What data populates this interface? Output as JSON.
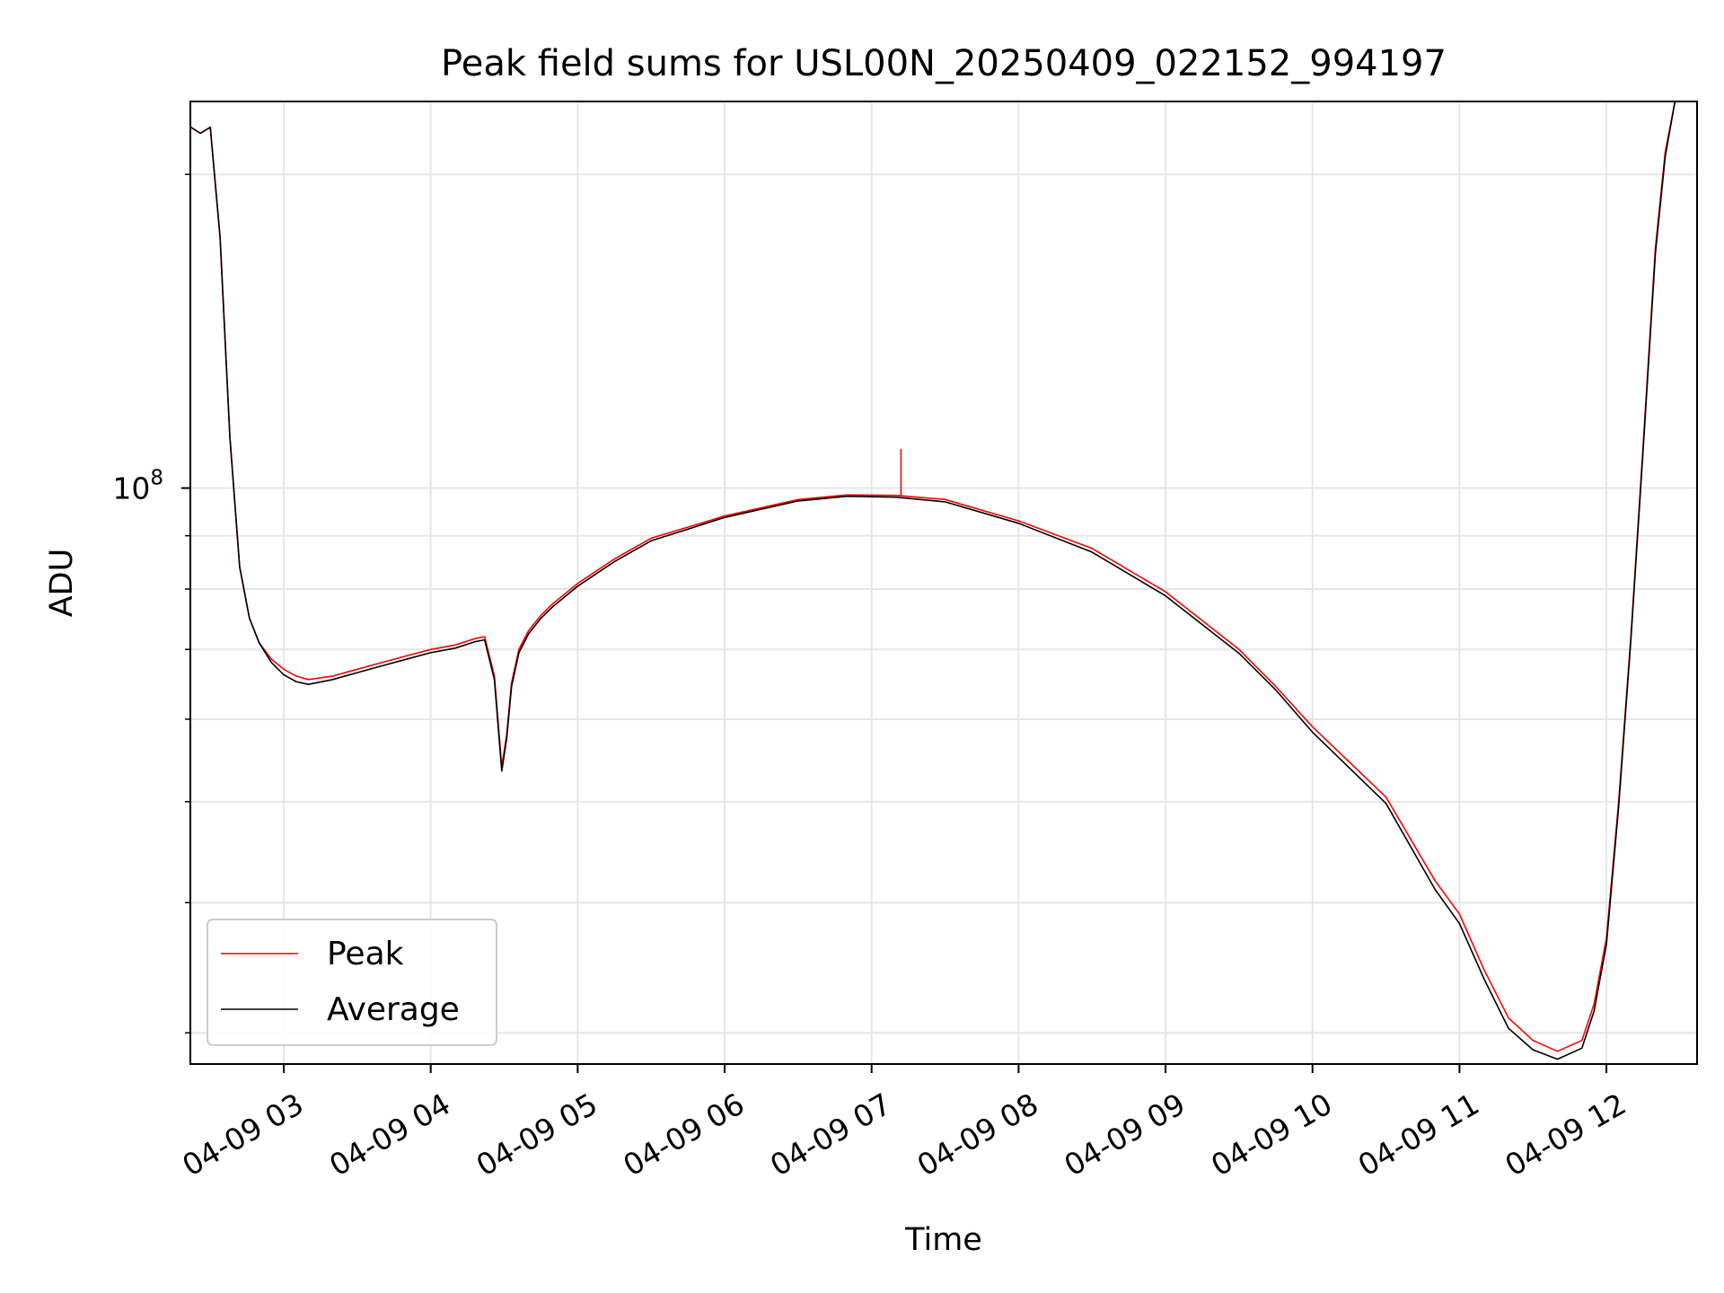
{
  "chart_data": {
    "type": "line",
    "title": "Peak field sums for USL00N_20250409_022152_994197",
    "xlabel": "Time",
    "ylabel": "ADU",
    "y_scale": "log",
    "grid": true,
    "grid_minor": true,
    "legend_placement": "lower-left",
    "xlim": [
      "2025-04-09 02:21:52",
      "2025-04-09 12:37:00"
    ],
    "ylim": [
      28000000,
      235000000
    ],
    "x_ticks": [
      {
        "value": "2025-04-09 03:00",
        "label": "04-09 03"
      },
      {
        "value": "2025-04-09 04:00",
        "label": "04-09 04"
      },
      {
        "value": "2025-04-09 05:00",
        "label": "04-09 05"
      },
      {
        "value": "2025-04-09 06:00",
        "label": "04-09 06"
      },
      {
        "value": "2025-04-09 07:00",
        "label": "04-09 07"
      },
      {
        "value": "2025-04-09 08:00",
        "label": "04-09 08"
      },
      {
        "value": "2025-04-09 09:00",
        "label": "04-09 09"
      },
      {
        "value": "2025-04-09 10:00",
        "label": "04-09 10"
      },
      {
        "value": "2025-04-09 11:00",
        "label": "04-09 11"
      },
      {
        "value": "2025-04-09 12:00",
        "label": "04-09 12"
      }
    ],
    "y_major_ticks": [
      {
        "value": 100000000,
        "label_base": "10",
        "label_exp": "8"
      }
    ],
    "y_minor_ticks": [
      30000000,
      40000000,
      50000000,
      60000000,
      70000000,
      80000000,
      90000000,
      200000000
    ],
    "colors": {
      "Peak": "#ff0000",
      "Average": "#000000",
      "grid": "#e6e6e6"
    },
    "series": [
      {
        "name": "Peak",
        "color": "#ff0000",
        "spikes": [
          {
            "x": "2025-04-09 07:12",
            "y": 109000000
          }
        ],
        "points": [
          [
            "2025-04-09 02:22",
            222000000
          ],
          [
            "2025-04-09 02:26",
            219000000
          ],
          [
            "2025-04-09 02:30",
            222000000
          ],
          [
            "2025-04-09 02:34",
            174000000
          ],
          [
            "2025-04-09 02:38",
            112000000
          ],
          [
            "2025-04-09 02:42",
            84000000
          ],
          [
            "2025-04-09 02:46",
            75000000
          ],
          [
            "2025-04-09 02:50",
            71000000
          ],
          [
            "2025-04-09 02:55",
            68500000
          ],
          [
            "2025-04-09 03:00",
            67000000
          ],
          [
            "2025-04-09 03:05",
            66000000
          ],
          [
            "2025-04-09 03:10",
            65500000
          ],
          [
            "2025-04-09 03:20",
            66000000
          ],
          [
            "2025-04-09 03:30",
            67000000
          ],
          [
            "2025-04-09 03:40",
            68000000
          ],
          [
            "2025-04-09 03:50",
            69000000
          ],
          [
            "2025-04-09 04:00",
            70000000
          ],
          [
            "2025-04-09 04:10",
            70700000
          ],
          [
            "2025-04-09 04:18",
            71700000
          ],
          [
            "2025-04-09 04:22",
            72000000
          ],
          [
            "2025-04-09 04:26",
            66000000
          ],
          [
            "2025-04-09 04:29",
            54000000
          ],
          [
            "2025-04-09 04:31",
            58000000
          ],
          [
            "2025-04-09 04:33",
            65000000
          ],
          [
            "2025-04-09 04:36",
            70000000
          ],
          [
            "2025-04-09 04:40",
            73000000
          ],
          [
            "2025-04-09 04:45",
            75500000
          ],
          [
            "2025-04-09 04:50",
            77500000
          ],
          [
            "2025-04-09 05:00",
            81000000
          ],
          [
            "2025-04-09 05:15",
            85500000
          ],
          [
            "2025-04-09 05:30",
            89500000
          ],
          [
            "2025-04-09 06:00",
            94000000
          ],
          [
            "2025-04-09 06:30",
            97500000
          ],
          [
            "2025-04-09 06:50",
            98500000
          ],
          [
            "2025-04-09 07:10",
            98400000
          ],
          [
            "2025-04-09 07:30",
            97500000
          ],
          [
            "2025-04-09 08:00",
            93000000
          ],
          [
            "2025-04-09 08:30",
            87500000
          ],
          [
            "2025-04-09 09:00",
            79500000
          ],
          [
            "2025-04-09 09:30",
            70000000
          ],
          [
            "2025-04-09 09:45",
            64500000
          ],
          [
            "2025-04-09 10:00",
            59000000
          ],
          [
            "2025-04-09 10:30",
            50500000
          ],
          [
            "2025-04-09 10:50",
            42000000
          ],
          [
            "2025-04-09 11:00",
            39000000
          ],
          [
            "2025-04-09 11:10",
            34500000
          ],
          [
            "2025-04-09 11:20",
            31000000
          ],
          [
            "2025-04-09 11:30",
            29500000
          ],
          [
            "2025-04-09 11:40",
            28800000
          ],
          [
            "2025-04-09 11:50",
            29500000
          ],
          [
            "2025-04-09 11:55",
            32000000
          ],
          [
            "2025-04-09 12:00",
            37000000
          ],
          [
            "2025-04-09 12:05",
            50000000
          ],
          [
            "2025-04-09 12:10",
            72000000
          ],
          [
            "2025-04-09 12:15",
            110000000
          ],
          [
            "2025-04-09 12:20",
            170000000
          ],
          [
            "2025-04-09 12:24",
            210000000
          ],
          [
            "2025-04-09 12:28",
            235000000
          ]
        ]
      },
      {
        "name": "Average",
        "color": "#000000",
        "points": [
          [
            "2025-04-09 02:22",
            222000000
          ],
          [
            "2025-04-09 02:26",
            219000000
          ],
          [
            "2025-04-09 02:30",
            222000000
          ],
          [
            "2025-04-09 02:34",
            174000000
          ],
          [
            "2025-04-09 02:38",
            112000000
          ],
          [
            "2025-04-09 02:42",
            84000000
          ],
          [
            "2025-04-09 02:46",
            75000000
          ],
          [
            "2025-04-09 02:50",
            71000000
          ],
          [
            "2025-04-09 02:55",
            68000000
          ],
          [
            "2025-04-09 03:00",
            66200000
          ],
          [
            "2025-04-09 03:05",
            65200000
          ],
          [
            "2025-04-09 03:10",
            64800000
          ],
          [
            "2025-04-09 03:20",
            65500000
          ],
          [
            "2025-04-09 03:30",
            66500000
          ],
          [
            "2025-04-09 03:40",
            67500000
          ],
          [
            "2025-04-09 03:50",
            68500000
          ],
          [
            "2025-04-09 04:00",
            69500000
          ],
          [
            "2025-04-09 04:10",
            70200000
          ],
          [
            "2025-04-09 04:18",
            71200000
          ],
          [
            "2025-04-09 04:22",
            71500000
          ],
          [
            "2025-04-09 04:26",
            65500000
          ],
          [
            "2025-04-09 04:29",
            53500000
          ],
          [
            "2025-04-09 04:31",
            57500000
          ],
          [
            "2025-04-09 04:33",
            64500000
          ],
          [
            "2025-04-09 04:36",
            69500000
          ],
          [
            "2025-04-09 04:40",
            72500000
          ],
          [
            "2025-04-09 04:45",
            75000000
          ],
          [
            "2025-04-09 04:50",
            77000000
          ],
          [
            "2025-04-09 05:00",
            80500000
          ],
          [
            "2025-04-09 05:15",
            85000000
          ],
          [
            "2025-04-09 05:30",
            89000000
          ],
          [
            "2025-04-09 06:00",
            93700000
          ],
          [
            "2025-04-09 06:30",
            97200000
          ],
          [
            "2025-04-09 06:50",
            98200000
          ],
          [
            "2025-04-09 07:10",
            98000000
          ],
          [
            "2025-04-09 07:30",
            97000000
          ],
          [
            "2025-04-09 08:00",
            92500000
          ],
          [
            "2025-04-09 08:30",
            86800000
          ],
          [
            "2025-04-09 09:00",
            78800000
          ],
          [
            "2025-04-09 09:30",
            69400000
          ],
          [
            "2025-04-09 09:45",
            64000000
          ],
          [
            "2025-04-09 10:00",
            58300000
          ],
          [
            "2025-04-09 10:30",
            49800000
          ],
          [
            "2025-04-09 10:50",
            41200000
          ],
          [
            "2025-04-09 11:00",
            38200000
          ],
          [
            "2025-04-09 11:10",
            33800000
          ],
          [
            "2025-04-09 11:20",
            30300000
          ],
          [
            "2025-04-09 11:30",
            28900000
          ],
          [
            "2025-04-09 11:40",
            28300000
          ],
          [
            "2025-04-09 11:50",
            29000000
          ],
          [
            "2025-04-09 11:55",
            31500000
          ],
          [
            "2025-04-09 12:00",
            36500000
          ],
          [
            "2025-04-09 12:05",
            49500000
          ],
          [
            "2025-04-09 12:10",
            71500000
          ],
          [
            "2025-04-09 12:15",
            109000000
          ],
          [
            "2025-04-09 12:20",
            168000000
          ],
          [
            "2025-04-09 12:24",
            208000000
          ],
          [
            "2025-04-09 12:28",
            235000000
          ]
        ]
      }
    ]
  }
}
